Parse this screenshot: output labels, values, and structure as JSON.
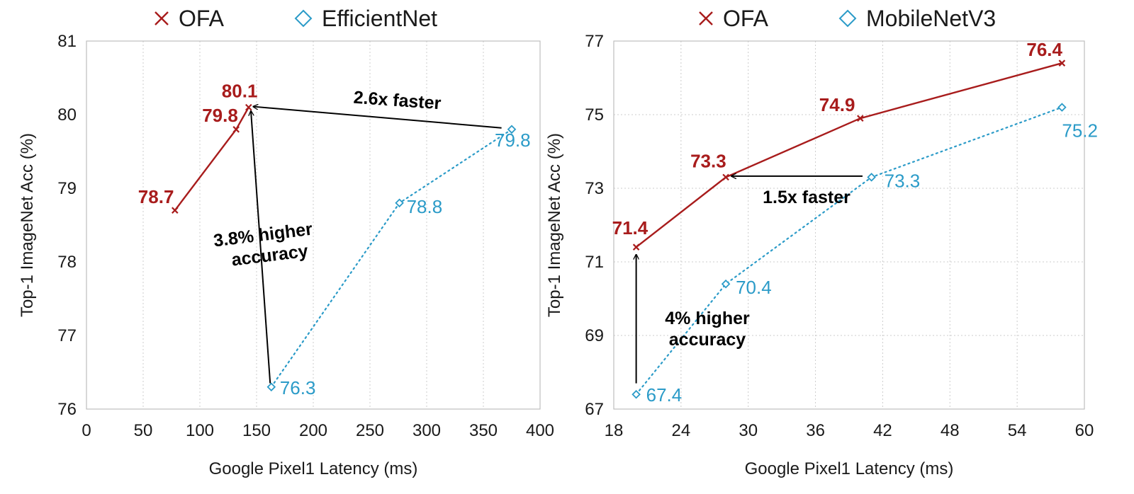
{
  "colors": {
    "ofa": "#A81C1C",
    "baseline": "#2B9BC8",
    "grid": "#CCCCCC",
    "axis": "#BFBFBF",
    "arrow": "#000000",
    "text": "#1A1A1A"
  },
  "chart_data": [
    {
      "type": "line",
      "title": "",
      "xlabel": "Google Pixel1 Latency (ms)",
      "ylabel": "Top-1 ImageNet Acc (%)",
      "xlim": [
        0,
        400
      ],
      "ylim": [
        76,
        81
      ],
      "xticks": [
        0,
        50,
        100,
        150,
        200,
        250,
        300,
        350,
        400
      ],
      "yticks": [
        76,
        77,
        78,
        79,
        80,
        81
      ],
      "grid": "vertical dotted",
      "legend": "top",
      "series": [
        {
          "name": "OFA",
          "marker": "x",
          "line": "solid",
          "x": [
            78,
            132,
            143
          ],
          "y": [
            78.7,
            79.8,
            80.1
          ],
          "labels": [
            "78.7",
            "79.8",
            "80.1"
          ]
        },
        {
          "name": "EfficientNet",
          "marker": "diamond",
          "line": "dotted",
          "x": [
            163,
            276,
            375
          ],
          "y": [
            76.3,
            78.8,
            79.8
          ],
          "labels": [
            "76.3",
            "78.8",
            "79.8"
          ]
        }
      ],
      "annotations": [
        {
          "lines": [
            "2.6x faster"
          ],
          "from": [
            366,
            79.82
          ],
          "to": [
            147,
            80.11
          ]
        },
        {
          "lines": [
            "3.8% higher",
            "accuracy"
          ],
          "from": [
            162,
            76.35
          ],
          "to": [
            145,
            80.05
          ]
        }
      ]
    },
    {
      "type": "line",
      "title": "",
      "xlabel": "Google Pixel1 Latency (ms)",
      "ylabel": "Top-1 ImageNet Acc (%)",
      "xlim": [
        18,
        60
      ],
      "ylim": [
        67,
        77
      ],
      "xticks": [
        18,
        24,
        30,
        36,
        42,
        48,
        54,
        60
      ],
      "yticks": [
        67,
        69,
        71,
        73,
        75,
        77
      ],
      "grid": "both dotted",
      "legend": "top",
      "series": [
        {
          "name": "OFA",
          "marker": "x",
          "line": "solid",
          "x": [
            20,
            28,
            40,
            58
          ],
          "y": [
            71.4,
            73.3,
            74.9,
            76.4
          ],
          "labels": [
            "71.4",
            "73.3",
            "74.9",
            "76.4"
          ]
        },
        {
          "name": "MobileNetV3",
          "marker": "diamond",
          "line": "dotted",
          "x": [
            20,
            28,
            41,
            58
          ],
          "y": [
            67.4,
            70.4,
            73.3,
            75.2
          ],
          "labels": [
            "67.4",
            "70.4",
            "73.3",
            "75.2"
          ]
        }
      ],
      "annotations": [
        {
          "lines": [
            "1.5x faster"
          ],
          "from": [
            40.2,
            73.33
          ],
          "to": [
            28.5,
            73.33
          ]
        },
        {
          "lines": [
            "4% higher",
            "accuracy"
          ],
          "from": [
            20,
            67.7
          ],
          "to": [
            20,
            71.2
          ]
        }
      ]
    }
  ]
}
